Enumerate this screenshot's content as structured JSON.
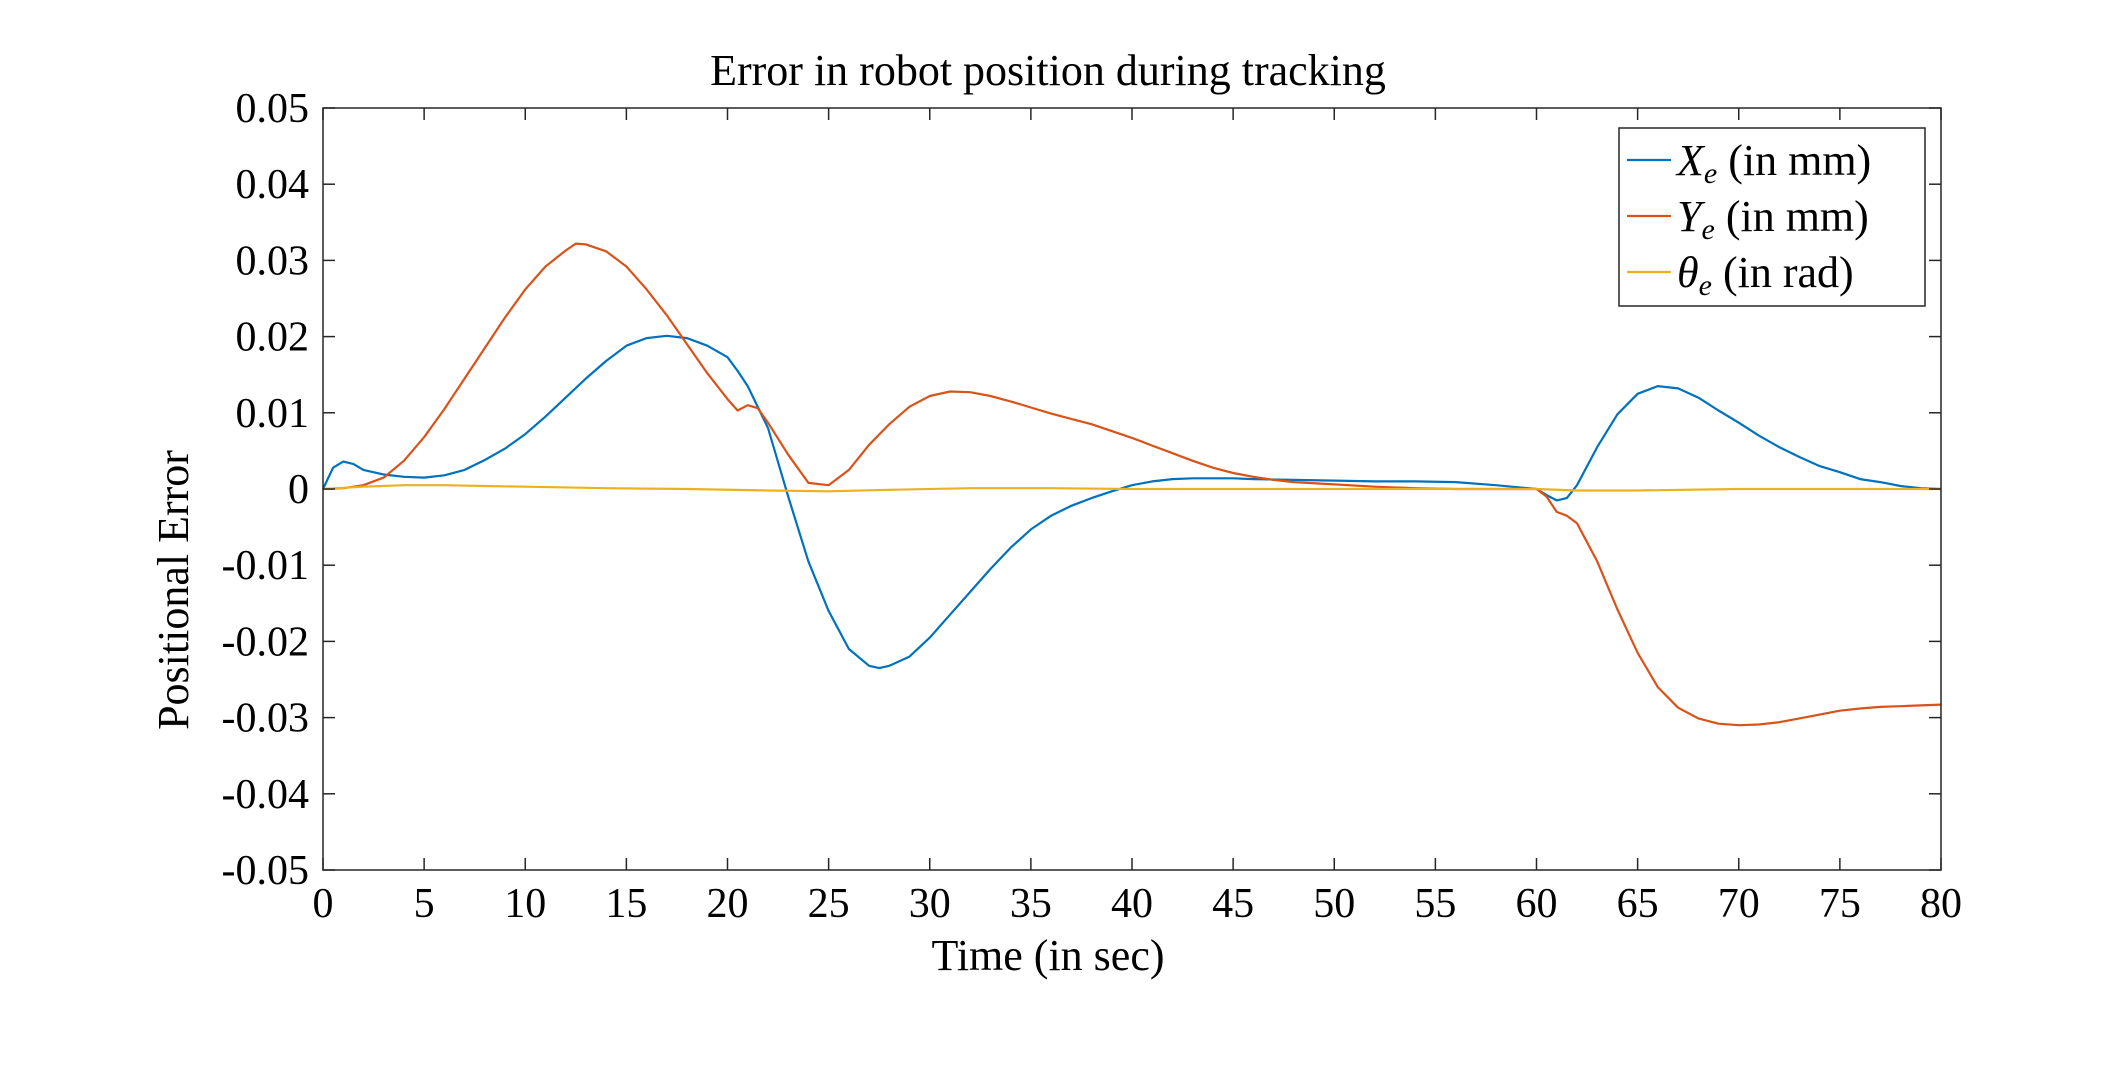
{
  "chart_data": {
    "type": "line",
    "title": "Error in robot position during tracking",
    "xlabel": "Time (in sec)",
    "ylabel": "Positional Error",
    "xlim": [
      0,
      80
    ],
    "ylim": [
      -0.05,
      0.05
    ],
    "xticks": [
      "0",
      "5",
      "10",
      "15",
      "20",
      "25",
      "30",
      "35",
      "40",
      "45",
      "50",
      "55",
      "60",
      "65",
      "70",
      "75",
      "80"
    ],
    "yticks": [
      "0.05",
      "0.04",
      "0.03",
      "0.02",
      "0.01",
      "0",
      "-0.01",
      "-0.02",
      "-0.03",
      "-0.04",
      "-0.05"
    ],
    "grid": false,
    "legend_position": "top-right",
    "series": [
      {
        "name": "X",
        "subscript": "e",
        "unit": " (in mm)",
        "color": "#0072BD",
        "x": [
          0,
          0.5,
          1,
          1.5,
          2,
          3,
          4,
          5,
          6,
          7,
          8,
          9,
          10,
          11,
          12,
          13,
          14,
          15,
          16,
          17,
          18,
          19,
          20,
          20.5,
          21,
          22,
          23,
          24,
          25,
          26,
          27,
          27.5,
          28,
          29,
          30,
          31,
          32,
          33,
          34,
          35,
          36,
          37,
          38,
          39,
          40,
          41,
          42,
          43,
          44,
          45,
          46,
          48,
          50,
          52,
          54,
          56,
          58,
          60,
          60.5,
          61,
          61.5,
          62,
          63,
          64,
          65,
          66,
          67,
          68,
          69,
          70,
          71,
          72,
          73,
          74,
          75,
          76,
          77,
          78,
          79,
          80
        ],
        "y": [
          0,
          0.0028,
          0.0036,
          0.0033,
          0.0025,
          0.0019,
          0.0016,
          0.0015,
          0.0018,
          0.0025,
          0.0038,
          0.0053,
          0.0072,
          0.0095,
          0.012,
          0.0145,
          0.0168,
          0.0188,
          0.0198,
          0.0201,
          0.0198,
          0.0188,
          0.0173,
          0.0155,
          0.0135,
          0.008,
          -0.001,
          -0.0095,
          -0.016,
          -0.021,
          -0.0232,
          -0.0235,
          -0.0232,
          -0.022,
          -0.0195,
          -0.0165,
          -0.0135,
          -0.0105,
          -0.0077,
          -0.0053,
          -0.0035,
          -0.0022,
          -0.0012,
          -0.0003,
          0.0005,
          0.001,
          0.0013,
          0.0014,
          0.0014,
          0.0014,
          0.0013,
          0.0012,
          0.0011,
          0.001,
          0.001,
          0.0009,
          0.0005,
          0,
          -0.0008,
          -0.0015,
          -0.0012,
          0.0005,
          0.0055,
          0.0098,
          0.0125,
          0.0135,
          0.0132,
          0.012,
          0.0103,
          0.0087,
          0.007,
          0.0055,
          0.0042,
          0.003,
          0.0022,
          0.0013,
          0.0009,
          0.0004,
          0.0001,
          0
        ]
      },
      {
        "name": "Y",
        "subscript": "e",
        "unit": " (in mm)",
        "color": "#D95319",
        "x": [
          0,
          1,
          2,
          3,
          4,
          5,
          6,
          7,
          8,
          9,
          10,
          11,
          12,
          12.5,
          13,
          14,
          15,
          16,
          17,
          18,
          19,
          20,
          20.5,
          21,
          21.5,
          22,
          23,
          24,
          25,
          26,
          27,
          28,
          29,
          30,
          31,
          32,
          33,
          34,
          35,
          36,
          37,
          38,
          39,
          40,
          41,
          42,
          43,
          44,
          45,
          46,
          47,
          48,
          50,
          52,
          54,
          56,
          58,
          59,
          60,
          60.5,
          61,
          61.5,
          62,
          63,
          64,
          65,
          66,
          67,
          68,
          69,
          70,
          71,
          72,
          73,
          74,
          75,
          76,
          77,
          78,
          79,
          80
        ],
        "y": [
          0,
          0.0001,
          0.0005,
          0.0015,
          0.0037,
          0.0068,
          0.0105,
          0.0145,
          0.0185,
          0.0225,
          0.0262,
          0.0292,
          0.0313,
          0.0322,
          0.0321,
          0.0312,
          0.0292,
          0.0262,
          0.0228,
          0.019,
          0.0152,
          0.0118,
          0.0103,
          0.011,
          0.0106,
          0.0087,
          0.0045,
          0.0008,
          0.0005,
          0.0025,
          0.0058,
          0.0085,
          0.0108,
          0.0122,
          0.0128,
          0.0127,
          0.0122,
          0.0115,
          0.0107,
          0.0099,
          0.0092,
          0.0085,
          0.0076,
          0.0067,
          0.0057,
          0.0047,
          0.0037,
          0.0028,
          0.0021,
          0.0016,
          0.0012,
          0.0009,
          0.0006,
          0.0003,
          0.0001,
          0,
          0,
          0,
          0,
          -0.001,
          -0.003,
          -0.0035,
          -0.0045,
          -0.0095,
          -0.0158,
          -0.0215,
          -0.026,
          -0.0287,
          -0.0301,
          -0.0308,
          -0.031,
          -0.0309,
          -0.0306,
          -0.0301,
          -0.0296,
          -0.0291,
          -0.0288,
          -0.0286,
          -0.0285,
          -0.0284,
          -0.0283
        ]
      },
      {
        "name": "θ",
        "subscript": "e",
        "unit": " (in rad)",
        "color": "#EDB120",
        "x": [
          0,
          2,
          4,
          6,
          8,
          10,
          14,
          18,
          22,
          25,
          28,
          32,
          36,
          40,
          45,
          50,
          55,
          60,
          62,
          65,
          70,
          75,
          80
        ],
        "y": [
          0,
          0.0003,
          0.0005,
          0.0005,
          0.0004,
          0.0003,
          0.0001,
          0,
          -0.0002,
          -0.0003,
          -0.0001,
          0.0001,
          0.0001,
          0,
          0,
          0,
          0,
          0,
          -0.0002,
          -0.0002,
          0,
          0,
          0
        ]
      }
    ]
  }
}
